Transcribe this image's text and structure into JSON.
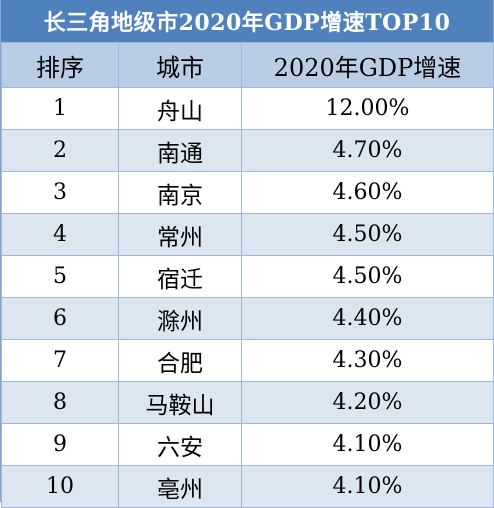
{
  "title": "长三角地级市2020年GDP增速TOP10",
  "headers": {
    "rank": "排序",
    "city": "城市",
    "growth": "2020年GDP增速"
  },
  "rows": [
    {
      "rank": "1",
      "city": "舟山",
      "growth": "12.00%"
    },
    {
      "rank": "2",
      "city": "南通",
      "growth": "4.70%"
    },
    {
      "rank": "3",
      "city": "南京",
      "growth": "4.60%"
    },
    {
      "rank": "4",
      "city": "常州",
      "growth": "4.50%"
    },
    {
      "rank": "5",
      "city": "宿迁",
      "growth": "4.50%"
    },
    {
      "rank": "6",
      "city": "滁州",
      "growth": "4.40%"
    },
    {
      "rank": "7",
      "city": "合肥",
      "growth": "4.30%"
    },
    {
      "rank": "8",
      "city": "马鞍山",
      "growth": "4.20%"
    },
    {
      "rank": "9",
      "city": "六安",
      "growth": "4.10%"
    },
    {
      "rank": "10",
      "city": "亳州",
      "growth": "4.10%"
    }
  ],
  "colors": {
    "title_bg": "#4f81bd",
    "header_bg": "#b9cde5",
    "band_bg": "#dce6f1"
  }
}
